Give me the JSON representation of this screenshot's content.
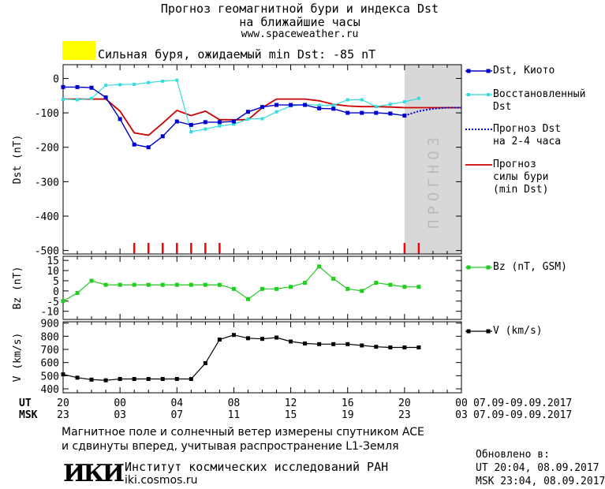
{
  "header": {
    "title_line1": "Прогноз геомагнитной бури и индекса Dst",
    "title_line2": "на ближайшие часы",
    "url": "www.spaceweather.ru"
  },
  "storm_status": {
    "text": "Сильная буря, ожидаемый min Dst: -85 nT",
    "color": "#ffff00"
  },
  "legend": {
    "dst_kyoto": "Dst, Киото",
    "dst_restored_1": "Восстановленный",
    "dst_restored_2": "Dst",
    "dst_forecast_1": "Прогноз Dst",
    "dst_forecast_2": "на 2-4 часа",
    "storm_forecast_1": "Прогноз",
    "storm_forecast_2": "силы бури",
    "storm_forecast_3": "(min Dst)",
    "bz": "Bz (nT, GSM)",
    "v": "V (km/s)"
  },
  "forecast_band_label": "ПРОГНОЗ",
  "time_axis": {
    "ut_label": "UT",
    "msk_label": "MSK",
    "ut_ticks": [
      "20",
      "00",
      "04",
      "08",
      "12",
      "16",
      "20",
      "00"
    ],
    "msk_ticks": [
      "23",
      "03",
      "07",
      "11",
      "15",
      "19",
      "23",
      "03"
    ],
    "ut_range": "07.09-09.09.2017",
    "msk_range": "07.09-09.09.2017"
  },
  "footer": {
    "line1": "Магнитное поле и солнечный ветер измерены спутником ACE",
    "line2": "и сдвинуты вперед, учитывая распространение L1-Земля",
    "institute_logo": "ИКИ",
    "institute_name": "Институт космических исследований РАН",
    "institute_url": "iki.cosmos.ru",
    "updated_label": "Обновлено в:",
    "updated_ut": "UT  20:04, 08.09.2017",
    "updated_msk": "MSK 23:04, 08.09.2017"
  },
  "colors": {
    "dst_kyoto": "#0000cc",
    "dst_restored": "#33dddd",
    "dst_forecast": "#0000cc",
    "storm_forecast": "#cc0000",
    "bz": "#22cc22",
    "v": "#000000",
    "forecast_band": "#d8d8d8",
    "forecast_text": "#bbbbbb",
    "storm_marks": "#ff0000"
  },
  "chart_data": [
    {
      "type": "line",
      "panel": "dst",
      "ylabel": "Dst (nT)",
      "xlim_hours": [
        0,
        28
      ],
      "ylim": [
        -510,
        40
      ],
      "yticks": [
        0,
        -100,
        -200,
        -300,
        -400,
        -500
      ],
      "forecast_start_hour": 24,
      "series": [
        {
          "name": "Dst, Киото",
          "x": [
            0,
            1,
            2,
            3,
            4,
            5,
            6,
            7,
            8,
            9,
            10,
            11,
            12,
            13,
            14,
            15,
            16,
            17,
            18,
            19,
            20,
            21,
            22,
            23,
            24
          ],
          "y": [
            -25,
            -25,
            -27,
            -55,
            -118,
            -192,
            -200,
            -168,
            -125,
            -135,
            -127,
            -127,
            -125,
            -97,
            -83,
            -77,
            -77,
            -77,
            -87,
            -88,
            -100,
            -100,
            -100,
            -102,
            -108
          ]
        },
        {
          "name": "Восстановленный Dst",
          "x": [
            0,
            1,
            2,
            3,
            4,
            5,
            6,
            7,
            8,
            9,
            10,
            11,
            12,
            13,
            14,
            15,
            16,
            17,
            18,
            19,
            20,
            21,
            22,
            23,
            24,
            25
          ],
          "y": [
            -60,
            -62,
            -58,
            -20,
            -18,
            -17,
            -12,
            -8,
            -5,
            -155,
            -147,
            -138,
            -133,
            -118,
            -117,
            -97,
            -80,
            -75,
            -78,
            -78,
            -62,
            -62,
            -82,
            -75,
            -68,
            -58
          ]
        },
        {
          "name": "Прогноз Dst на 2-4 часа",
          "x": [
            24,
            25,
            26,
            27,
            28
          ],
          "y": [
            -108,
            -95,
            -88,
            -85,
            -85
          ]
        },
        {
          "name": "Прогноз силы бури (min Dst)",
          "x": [
            0,
            1,
            2,
            3,
            4,
            5,
            6,
            7,
            8,
            9,
            10,
            11,
            12,
            13,
            14,
            15,
            16,
            17,
            18,
            19,
            20,
            21,
            22,
            23,
            24,
            25,
            26,
            27,
            28
          ],
          "y": [
            -60,
            -60,
            -60,
            -60,
            -95,
            -158,
            -165,
            -130,
            -93,
            -108,
            -95,
            -120,
            -120,
            -120,
            -85,
            -60,
            -60,
            -60,
            -65,
            -75,
            -80,
            -82,
            -82,
            -83,
            -85,
            -85,
            -85,
            -85,
            -85
          ]
        }
      ],
      "storm_marks_hours": [
        5,
        6,
        7,
        8,
        9,
        10,
        11,
        24,
        25
      ]
    },
    {
      "type": "line",
      "panel": "bz",
      "ylabel": "Bz (nT)",
      "ylim": [
        -14,
        17
      ],
      "yticks": [
        15,
        10,
        5,
        0,
        -5,
        -10
      ],
      "series": [
        {
          "name": "Bz (nT, GSM)",
          "x": [
            0,
            1,
            2,
            3,
            4,
            5,
            6,
            7,
            8,
            9,
            10,
            11,
            12,
            13,
            14,
            15,
            16,
            17,
            18,
            19,
            20,
            21,
            22,
            23,
            24,
            25
          ],
          "y": [
            -5,
            -1,
            5,
            3,
            3,
            3,
            3,
            3,
            3,
            3,
            3,
            3,
            1,
            -4,
            1,
            1,
            2,
            4,
            12,
            6,
            1,
            0,
            4,
            3,
            2,
            2
          ]
        }
      ]
    },
    {
      "type": "line",
      "panel": "v",
      "ylabel": "V (km/s)",
      "ylim": [
        370,
        910
      ],
      "yticks": [
        900,
        800,
        700,
        600,
        500,
        400
      ],
      "series": [
        {
          "name": "V (km/s)",
          "x": [
            0,
            1,
            2,
            3,
            4,
            5,
            6,
            7,
            8,
            9,
            10,
            11,
            12,
            13,
            14,
            15,
            16,
            17,
            18,
            19,
            20,
            21,
            22,
            23,
            24,
            25
          ],
          "y": [
            510,
            485,
            470,
            465,
            475,
            475,
            475,
            475,
            475,
            475,
            595,
            775,
            810,
            785,
            780,
            790,
            760,
            745,
            740,
            740,
            740,
            730,
            720,
            715,
            715,
            715
          ]
        }
      ]
    }
  ]
}
